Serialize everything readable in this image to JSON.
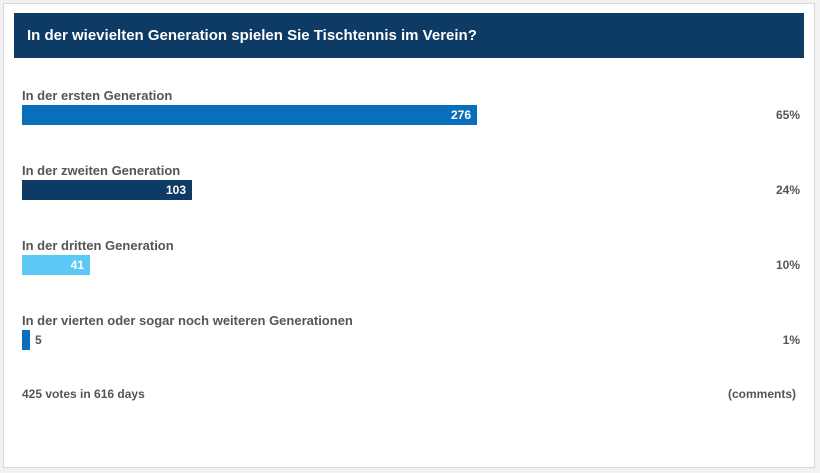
{
  "poll": {
    "question": "In der wievielten Generation spielen Sie Tischtennis im Verein?",
    "votes_summary": "425 votes in 616 days",
    "comments_label": "(comments)"
  },
  "chart_data": {
    "type": "bar",
    "orientation": "horizontal",
    "title": "In der wievielten Generation spielen Sie Tischtennis im Verein?",
    "categories": [
      "In der ersten Generation",
      "In der zweiten Generation",
      "In der dritten Generation",
      "In der vierten oder sogar noch weiteren Generationen"
    ],
    "values": [
      276,
      103,
      41,
      5
    ],
    "percent_labels": [
      "65%",
      "24%",
      "10%",
      "1%"
    ],
    "colors": [
      "#0a6fba",
      "#0e3a66",
      "#5bc8f5",
      "#0a6fba"
    ],
    "grid": false,
    "legend": "none"
  }
}
